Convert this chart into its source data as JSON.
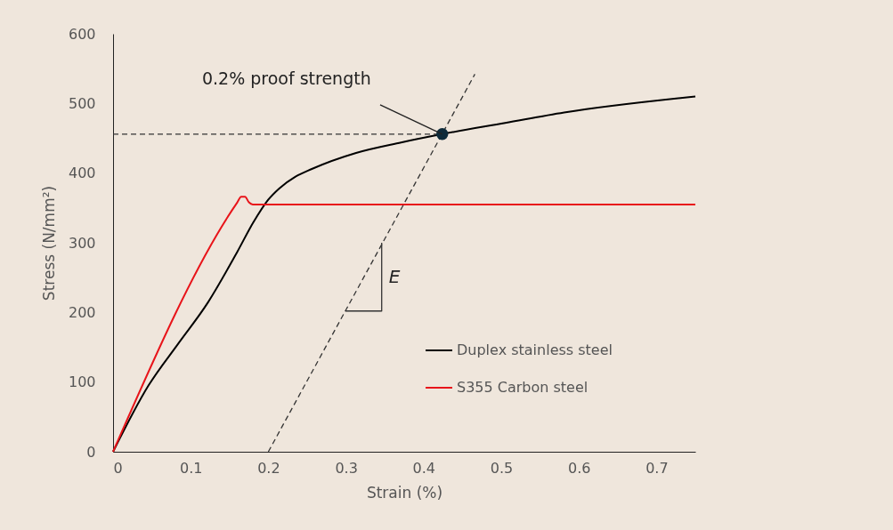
{
  "chart_data": {
    "type": "line",
    "xlabel": "Strain (%)",
    "ylabel": "Stress (N/mm²)",
    "xlim": [
      0,
      0.75
    ],
    "ylim": [
      0,
      600
    ],
    "xticks": [
      0,
      0.1,
      0.2,
      0.3,
      0.4,
      0.5,
      0.6,
      0.7
    ],
    "yticks": [
      0,
      100,
      200,
      300,
      400,
      500,
      600
    ],
    "grid": false,
    "legend": "bottom right",
    "marker": "none",
    "line_style": "solid",
    "series": [
      {
        "name": "Duplex stainless steel",
        "color": "#000000",
        "x": [
          0,
          0.0456,
          0.0838,
          0.122,
          0.16,
          0.18,
          0.2,
          0.214,
          0.235,
          0.256,
          0.313,
          0.371,
          0.424,
          0.505,
          0.581,
          0.75
        ],
        "values": [
          0,
          95,
          155,
          214,
          287,
          328,
          362,
          378,
          395,
          406,
          429,
          444,
          456,
          472,
          487,
          510
        ]
      },
      {
        "name": "S355 Carbon steel",
        "color": "#e8141a",
        "x": [
          0,
          0.16,
          0.165,
          0.17,
          0.175,
          0.18,
          0.75
        ],
        "values": [
          0,
          358,
          366,
          366,
          358,
          355,
          355
        ]
      },
      {
        "type": "line",
        "color": "#333333",
        "line_style": "dashed",
        "x": [
          0.2,
          0.466
        ],
        "values": [
          0,
          542
        ]
      },
      {
        "type": "line",
        "color": "#333333",
        "line_style": "dashed",
        "x": [
          0,
          0.424
        ],
        "values": [
          456,
          456
        ]
      },
      {
        "type": "line",
        "color": "#333333",
        "x": [
          0.299,
          0.346,
          0.346
        ],
        "values": [
          202,
          202,
          300
        ]
      },
      {
        "type": "scatter",
        "color": "#0d2a3a",
        "marker": "circle",
        "x": [
          0.424
        ],
        "values": [
          456
        ]
      }
    ],
    "annotations": [
      {
        "text": "0.2% proof strength",
        "x": 0.424,
        "y": 456
      },
      {
        "text": "E",
        "x": 0.346,
        "y": 250
      }
    ]
  }
}
